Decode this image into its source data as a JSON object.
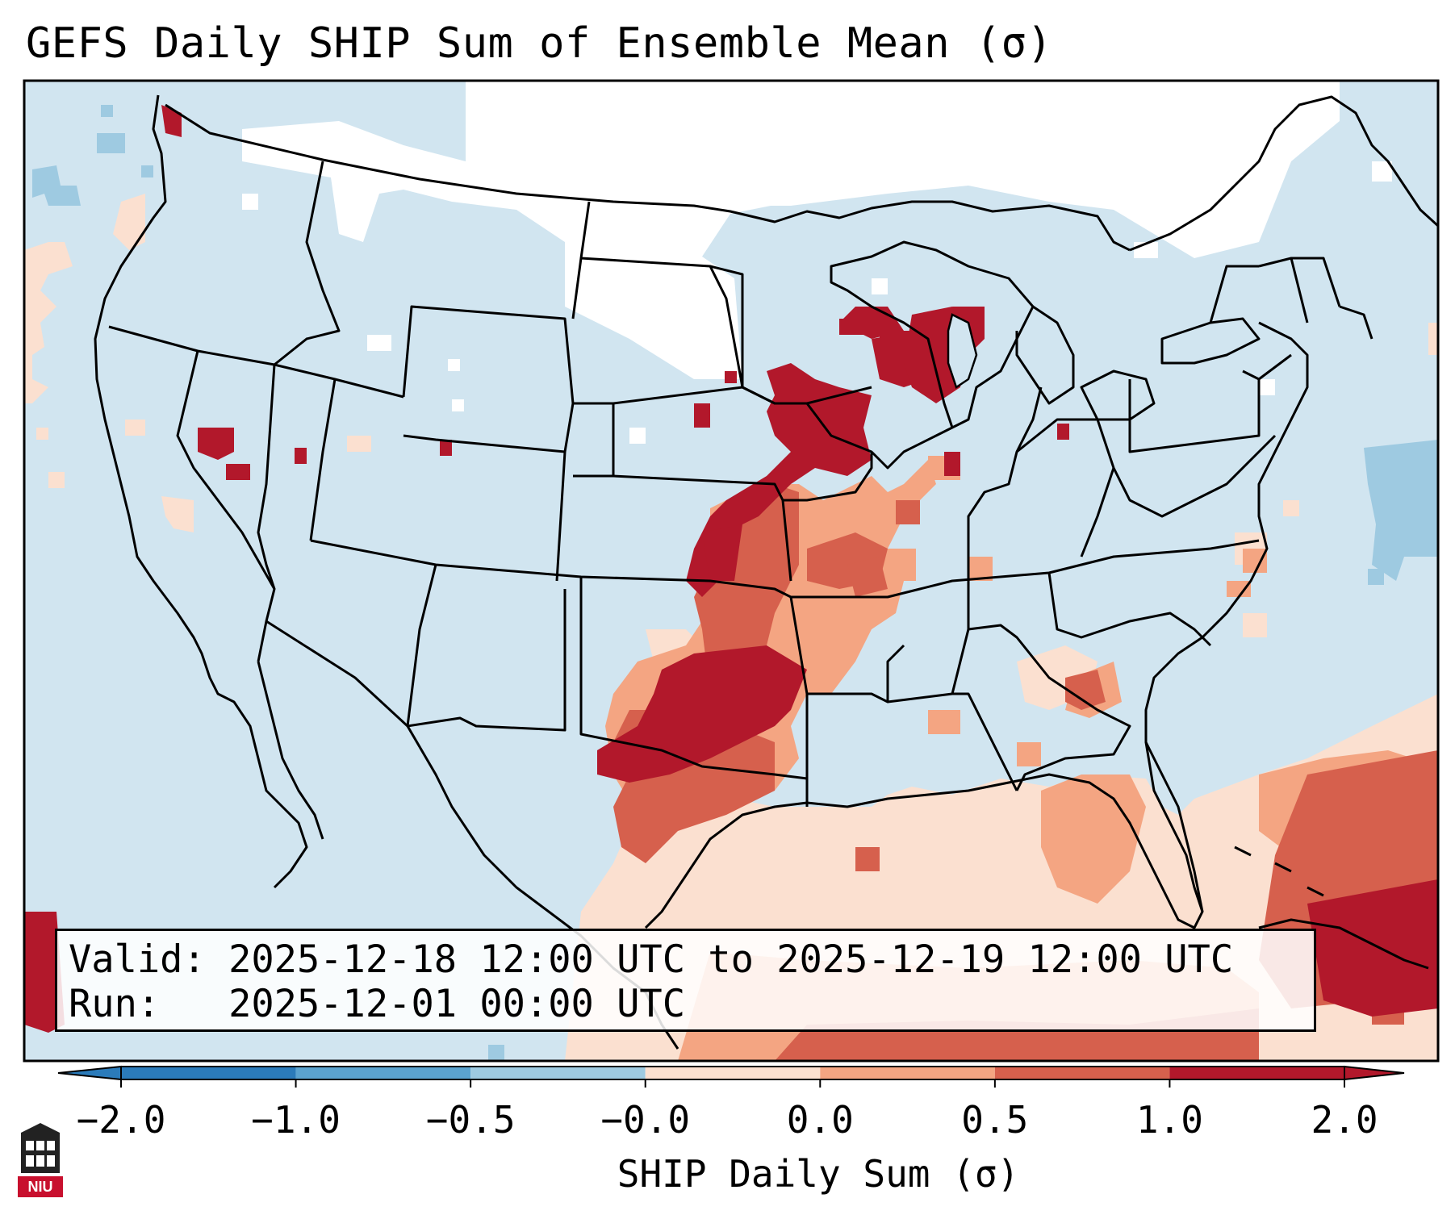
{
  "title": "GEFS Daily SHIP Sum of Ensemble Mean (σ)",
  "info": {
    "valid_label": "Valid:",
    "valid_value": "2025-12-18 12:00 UTC to 2025-12-19 12:00 UTC",
    "run_label": "Run:",
    "run_value": "2025-12-01 00:00 UTC"
  },
  "colorbar": {
    "label": "SHIP Daily Sum (σ)",
    "ticks": [
      "−2.0",
      "−1.0",
      "−0.5",
      "−0.0",
      "0.0",
      "0.5",
      "1.0",
      "2.0"
    ],
    "colors": [
      "#2b7bba",
      "#5ba3cf",
      "#9ecae1",
      "#d1e5f0",
      "#fbe0d0",
      "#f4a582",
      "#d6604d",
      "#b2182b"
    ],
    "extend": "both"
  },
  "logo": {
    "text": "NIU",
    "icon": "university-building-icon"
  },
  "map": {
    "projection": "lambert-conformal",
    "region": "CONUS",
    "features": [
      "coastlines",
      "state-borders",
      "country-borders"
    ]
  }
}
